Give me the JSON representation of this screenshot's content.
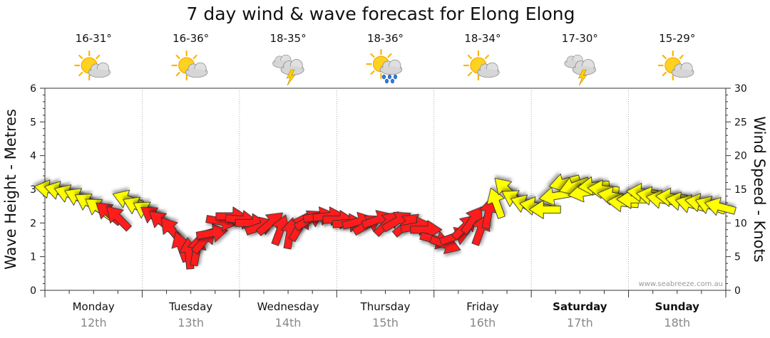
{
  "chart_data": {
    "type": "scatter",
    "title": "7 day wind & wave forecast for Elong Elong",
    "ylabel_left": "Wave Height - Metres",
    "ylabel_right": "Wind Speed - Knots",
    "yticks_left": [
      "0",
      "1",
      "2",
      "3",
      "4",
      "5",
      "6"
    ],
    "yticks_right": [
      "0",
      "5",
      "10",
      "15",
      "20",
      "25",
      "30"
    ],
    "ylim_left": [
      0,
      6
    ],
    "ylim_right": [
      0,
      30
    ],
    "credit": "www.seabreeze.com.au",
    "days": [
      {
        "day": "Monday",
        "date": "12th",
        "temp": "16-31°",
        "icon": "sun-cloud-icon",
        "bold": false
      },
      {
        "day": "Tuesday",
        "date": "13th",
        "temp": "16-36°",
        "icon": "sun-cloud-icon",
        "bold": false
      },
      {
        "day": "Wednesday",
        "date": "14th",
        "temp": "18-35°",
        "icon": "storm-cloud-icon",
        "bold": false
      },
      {
        "day": "Thursday",
        "date": "15th",
        "temp": "18-36°",
        "icon": "sun-rain-icon",
        "bold": false
      },
      {
        "day": "Friday",
        "date": "16th",
        "temp": "18-34°",
        "icon": "sun-cloud-icon",
        "bold": false
      },
      {
        "day": "Saturday",
        "date": "17th",
        "temp": "17-30°",
        "icon": "storm-cloud-icon",
        "bold": true
      },
      {
        "day": "Sunday",
        "date": "18th",
        "temp": "15-29°",
        "icon": "sun-cloud-icon",
        "bold": true
      }
    ],
    "wind_points": [
      {
        "t": 0.05,
        "knots": 15.0,
        "dir": 100,
        "level": "light"
      },
      {
        "t": 0.15,
        "knots": 14.8,
        "dir": 105,
        "level": "light"
      },
      {
        "t": 0.25,
        "knots": 14.3,
        "dir": 110,
        "level": "light"
      },
      {
        "t": 0.35,
        "knots": 13.8,
        "dir": 115,
        "level": "light"
      },
      {
        "t": 0.45,
        "knots": 13.0,
        "dir": 120,
        "level": "light"
      },
      {
        "t": 0.55,
        "knots": 12.2,
        "dir": 125,
        "level": "light"
      },
      {
        "t": 0.65,
        "knots": 11.5,
        "dir": 130,
        "level": "strong"
      },
      {
        "t": 0.75,
        "knots": 10.8,
        "dir": 135,
        "level": "strong"
      },
      {
        "t": 0.85,
        "knots": 13.5,
        "dir": 110,
        "level": "light"
      },
      {
        "t": 0.95,
        "knots": 12.5,
        "dir": 115,
        "level": "light"
      },
      {
        "t": 1.05,
        "knots": 11.8,
        "dir": 120,
        "level": "light"
      },
      {
        "t": 1.12,
        "knots": 11.0,
        "dir": 125,
        "level": "strong"
      },
      {
        "t": 1.2,
        "knots": 10.2,
        "dir": 130,
        "level": "strong"
      },
      {
        "t": 1.3,
        "knots": 9.0,
        "dir": 140,
        "level": "strong"
      },
      {
        "t": 1.4,
        "knots": 6.5,
        "dir": 160,
        "level": "strong"
      },
      {
        "t": 1.48,
        "knots": 5.5,
        "dir": 175,
        "level": "strong"
      },
      {
        "t": 1.56,
        "knots": 6.0,
        "dir": 190,
        "level": "strong"
      },
      {
        "t": 1.64,
        "knots": 7.5,
        "dir": 220,
        "level": "strong"
      },
      {
        "t": 1.72,
        "knots": 8.5,
        "dir": 260,
        "level": "strong"
      },
      {
        "t": 1.82,
        "knots": 10.2,
        "dir": 280,
        "level": "strong"
      },
      {
        "t": 1.92,
        "knots": 11.0,
        "dir": 270,
        "level": "strong"
      },
      {
        "t": 2.02,
        "knots": 10.5,
        "dir": 275,
        "level": "strong"
      },
      {
        "t": 2.12,
        "knots": 10.0,
        "dir": 270,
        "level": "strong"
      },
      {
        "t": 2.22,
        "knots": 9.5,
        "dir": 250,
        "level": "strong"
      },
      {
        "t": 2.32,
        "knots": 10.0,
        "dir": 230,
        "level": "strong"
      },
      {
        "t": 2.42,
        "knots": 9.0,
        "dir": 200,
        "level": "strong"
      },
      {
        "t": 2.52,
        "knots": 8.5,
        "dir": 190,
        "level": "strong"
      },
      {
        "t": 2.62,
        "knots": 9.5,
        "dir": 210,
        "level": "strong"
      },
      {
        "t": 2.72,
        "knots": 10.5,
        "dir": 240,
        "level": "strong"
      },
      {
        "t": 2.82,
        "knots": 11.0,
        "dir": 260,
        "level": "strong"
      },
      {
        "t": 2.92,
        "knots": 11.0,
        "dir": 265,
        "level": "strong"
      },
      {
        "t": 3.02,
        "knots": 10.5,
        "dir": 270,
        "level": "strong"
      },
      {
        "t": 3.12,
        "knots": 10.0,
        "dir": 265,
        "level": "strong"
      },
      {
        "t": 3.22,
        "knots": 10.2,
        "dir": 255,
        "level": "strong"
      },
      {
        "t": 3.32,
        "knots": 9.8,
        "dir": 240,
        "level": "strong"
      },
      {
        "t": 3.42,
        "knots": 10.5,
        "dir": 250,
        "level": "strong"
      },
      {
        "t": 3.52,
        "knots": 10.0,
        "dir": 225,
        "level": "strong"
      },
      {
        "t": 3.62,
        "knots": 10.3,
        "dir": 240,
        "level": "strong"
      },
      {
        "t": 3.72,
        "knots": 9.8,
        "dir": 230,
        "level": "strong"
      },
      {
        "t": 3.82,
        "knots": 9.5,
        "dir": 260,
        "level": "strong"
      },
      {
        "t": 3.92,
        "knots": 9.0,
        "dir": 270,
        "level": "strong"
      },
      {
        "t": 4.02,
        "knots": 7.5,
        "dir": 285,
        "level": "strong"
      },
      {
        "t": 4.12,
        "knots": 6.8,
        "dir": 290,
        "level": "strong"
      },
      {
        "t": 4.22,
        "knots": 8.0,
        "dir": 250,
        "level": "strong"
      },
      {
        "t": 4.32,
        "knots": 9.5,
        "dir": 225,
        "level": "strong"
      },
      {
        "t": 4.4,
        "knots": 10.5,
        "dir": 215,
        "level": "strong"
      },
      {
        "t": 4.48,
        "knots": 9.0,
        "dir": 200,
        "level": "strong"
      },
      {
        "t": 4.56,
        "knots": 11.5,
        "dir": 190,
        "level": "strong"
      },
      {
        "t": 4.64,
        "knots": 13.0,
        "dir": 160,
        "level": "light"
      },
      {
        "t": 4.74,
        "knots": 15.0,
        "dir": 135,
        "level": "light"
      },
      {
        "t": 4.84,
        "knots": 13.5,
        "dir": 120,
        "level": "light"
      },
      {
        "t": 4.94,
        "knots": 12.8,
        "dir": 110,
        "level": "light"
      },
      {
        "t": 5.04,
        "knots": 12.5,
        "dir": 100,
        "level": "light"
      },
      {
        "t": 5.14,
        "knots": 12.0,
        "dir": 90,
        "level": "light"
      },
      {
        "t": 5.24,
        "knots": 14.0,
        "dir": 80,
        "level": "light"
      },
      {
        "t": 5.34,
        "knots": 16.0,
        "dir": 75,
        "level": "light"
      },
      {
        "t": 5.44,
        "knots": 15.5,
        "dir": 70,
        "level": "light"
      },
      {
        "t": 5.54,
        "knots": 14.5,
        "dir": 80,
        "level": "light"
      },
      {
        "t": 5.64,
        "knots": 15.5,
        "dir": 85,
        "level": "light"
      },
      {
        "t": 5.74,
        "knots": 15.0,
        "dir": 95,
        "level": "light"
      },
      {
        "t": 5.84,
        "knots": 14.0,
        "dir": 100,
        "level": "light"
      },
      {
        "t": 5.94,
        "knots": 13.0,
        "dir": 95,
        "level": "light"
      },
      {
        "t": 6.04,
        "knots": 13.5,
        "dir": 90,
        "level": "light"
      },
      {
        "t": 6.14,
        "knots": 14.5,
        "dir": 95,
        "level": "light"
      },
      {
        "t": 6.24,
        "knots": 14.0,
        "dir": 100,
        "level": "light"
      },
      {
        "t": 6.34,
        "knots": 13.5,
        "dir": 100,
        "level": "light"
      },
      {
        "t": 6.44,
        "knots": 13.8,
        "dir": 95,
        "level": "light"
      },
      {
        "t": 6.54,
        "knots": 13.2,
        "dir": 100,
        "level": "light"
      },
      {
        "t": 6.64,
        "knots": 12.8,
        "dir": 105,
        "level": "light"
      },
      {
        "t": 6.74,
        "knots": 13.0,
        "dir": 100,
        "level": "light"
      },
      {
        "t": 6.84,
        "knots": 12.6,
        "dir": 110,
        "level": "light"
      },
      {
        "t": 6.94,
        "knots": 12.4,
        "dir": 105,
        "level": "light"
      }
    ],
    "colors": {
      "light_fill": "#ffff00",
      "strong_fill": "#ff1a1a",
      "outline": "#333333",
      "grid": "#999999",
      "axis": "#333333"
    }
  }
}
